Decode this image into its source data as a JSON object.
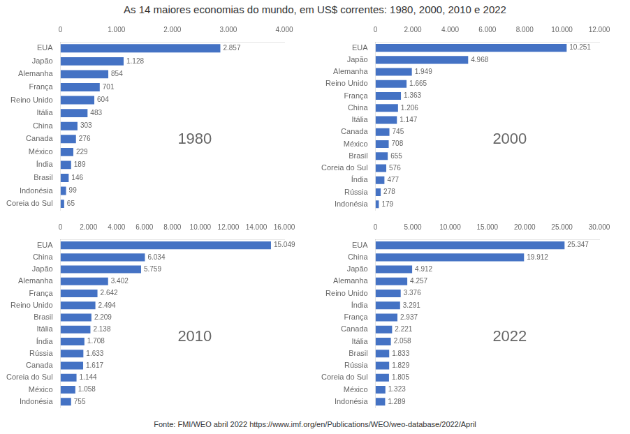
{
  "title": "As 14 maiores economias do mundo, em US$ correntes: 1980, 2000, 2010 e 2022",
  "annotations": [
    "Fonte: FMI/WEO abril 2022",
    "https://www.imf.org/en/Publications/WEO/weo-database/2022/April"
  ],
  "chart_data": [
    {
      "type": "bar",
      "orientation": "horizontal",
      "color": "#4472C4",
      "grid": false,
      "data_labels": true,
      "annotations": [
        "1980"
      ],
      "categories": [
        "EUA",
        "Japão",
        "Alemanha",
        "França",
        "Reino Unido",
        "Itália",
        "China",
        "Canada",
        "México",
        "Índia",
        "Brasil",
        "Indonésia",
        "Coreia do Sul"
      ],
      "values": [
        2857,
        1128,
        854,
        701,
        604,
        483,
        303,
        276,
        229,
        189,
        146,
        99,
        65
      ],
      "value_labels": [
        "2.857",
        "1.128",
        "854",
        "701",
        "604",
        "483",
        "303",
        "276",
        "229",
        "189",
        "146",
        "99",
        "65"
      ],
      "xlim": [
        0,
        4000
      ],
      "xticks": [
        0,
        {
          "value": 1000,
          "label": "1.000"
        },
        {
          "value": 2000,
          "label": "2.000"
        },
        {
          "value": 3000,
          "label": "3.000"
        },
        {
          "value": 4000,
          "label": "4.000"
        }
      ]
    },
    {
      "type": "bar",
      "orientation": "horizontal",
      "color": "#4472C4",
      "grid": false,
      "data_labels": true,
      "annotations": [
        "2000"
      ],
      "categories": [
        "EUA",
        "Japão",
        "Alemanha",
        "Reino Unido",
        "França",
        "China",
        "Itália",
        "Canada",
        "México",
        "Brasil",
        "Coreia do Sul",
        "Índia",
        "Rússia",
        "Indonésia"
      ],
      "values": [
        10251,
        4968,
        1949,
        1665,
        1363,
        1206,
        1147,
        745,
        708,
        655,
        576,
        477,
        278,
        179
      ],
      "value_labels": [
        "10.251",
        "4.968",
        "1.949",
        "1.665",
        "1.363",
        "1.206",
        "1.147",
        "745",
        "708",
        "655",
        "576",
        "477",
        "278",
        "179"
      ],
      "xlim": [
        0,
        12000
      ],
      "xticks": [
        0,
        {
          "value": 2000,
          "label": "2.000"
        },
        {
          "value": 4000,
          "label": "4.000"
        },
        {
          "value": 6000,
          "label": "6.000"
        },
        {
          "value": 8000,
          "label": "8.000"
        },
        {
          "value": 10000,
          "label": "10.000"
        },
        {
          "value": 12000,
          "label": "12.000"
        }
      ]
    },
    {
      "type": "bar",
      "orientation": "horizontal",
      "color": "#4472C4",
      "grid": false,
      "data_labels": true,
      "annotations": [
        "2010"
      ],
      "categories": [
        "EUA",
        "China",
        "Japão",
        "Alemanha",
        "França",
        "Reino Unido",
        "Brasil",
        "Itália",
        "Índia",
        "Rússia",
        "Canada",
        "Coreia do Sul",
        "México",
        "Indonésia"
      ],
      "values": [
        15049,
        6034,
        5759,
        3402,
        2642,
        2494,
        2209,
        2138,
        1708,
        1633,
        1617,
        1144,
        1058,
        755
      ],
      "value_labels": [
        "15.049",
        "6.034",
        "5.759",
        "3.402",
        "2.642",
        "2.494",
        "2.209",
        "2.138",
        "1.708",
        "1.633",
        "1.617",
        "1.144",
        "1.058",
        "755"
      ],
      "xlim": [
        0,
        16000
      ],
      "xticks": [
        0,
        {
          "value": 2000,
          "label": "2.000"
        },
        {
          "value": 4000,
          "label": "4.000"
        },
        {
          "value": 6000,
          "label": "6.000"
        },
        {
          "value": 8000,
          "label": "8.000"
        },
        {
          "value": 10000,
          "label": "10.000"
        },
        {
          "value": 12000,
          "label": "12.000"
        },
        {
          "value": 14000,
          "label": "14.000"
        },
        {
          "value": 16000,
          "label": "16.000"
        }
      ]
    },
    {
      "type": "bar",
      "orientation": "horizontal",
      "color": "#4472C4",
      "grid": false,
      "data_labels": true,
      "annotations": [
        "2022"
      ],
      "categories": [
        "EUA",
        "China",
        "Japão",
        "Alemanha",
        "Reino Unido",
        "Índia",
        "França",
        "Canada",
        "Itália",
        "Brasil",
        "Rússia",
        "Coreia do Sul",
        "México",
        "Indonésia"
      ],
      "values": [
        25347,
        19912,
        4912,
        4257,
        3376,
        3291,
        2937,
        2221,
        2058,
        1833,
        1829,
        1805,
        1323,
        1289
      ],
      "value_labels": [
        "25.347",
        "19.912",
        "4.912",
        "4.257",
        "3.376",
        "3.291",
        "2.937",
        "2.221",
        "2.058",
        "1.833",
        "1.829",
        "1.805",
        "1.323",
        "1.289"
      ],
      "xlim": [
        0,
        30000
      ],
      "xticks": [
        0,
        {
          "value": 5000,
          "label": "5.000"
        },
        {
          "value": 10000,
          "label": "10.000"
        },
        {
          "value": 15000,
          "label": "15.000"
        },
        {
          "value": 20000,
          "label": "20.000"
        },
        {
          "value": 25000,
          "label": "25.000"
        },
        {
          "value": 30000,
          "label": "30.000"
        }
      ]
    }
  ]
}
